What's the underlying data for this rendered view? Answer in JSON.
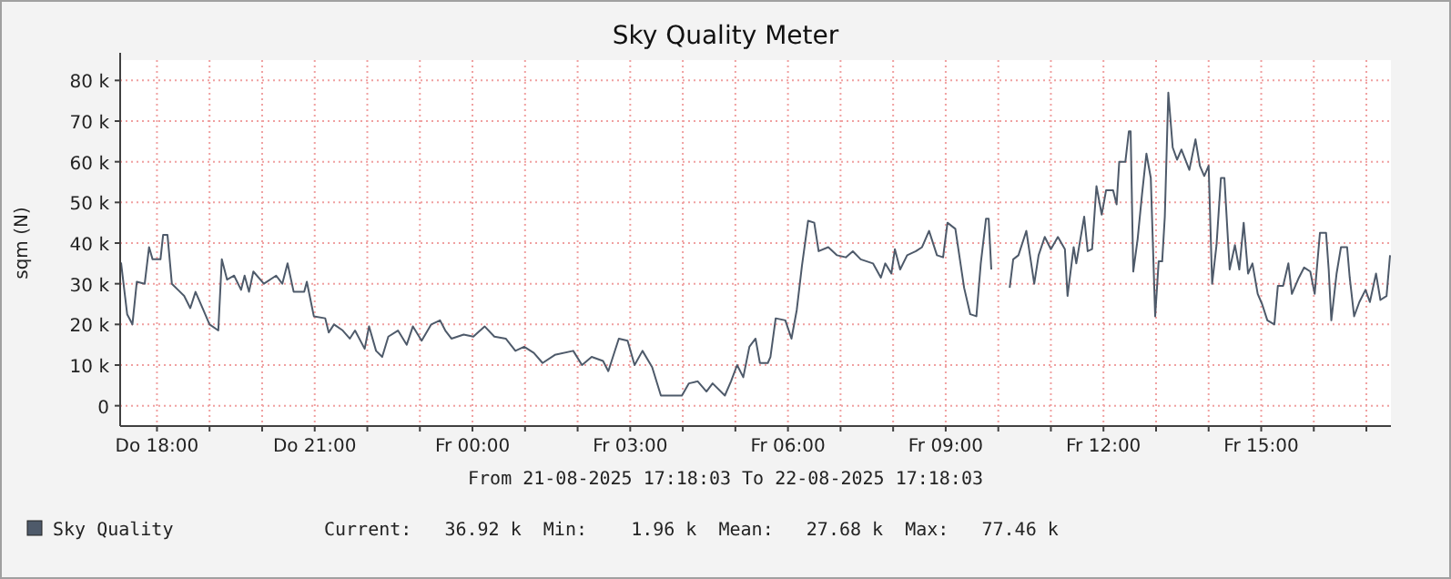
{
  "chart_data": {
    "type": "line",
    "title": "Sky Quality Meter",
    "ylabel": "sqm (N)",
    "annotations": [
      "From 21-08-2025 17:18:03 To 22-08-2025 17:18:03",
      "Current:   36.92 k  Min:    1.96 k  Mean:   27.68 k  Max:   77.46 k"
    ],
    "xlim": [
      "2025-08-21T17:18",
      "2025-08-22T17:28"
    ],
    "xticks": [
      {
        "value": "2025-08-21T18:00",
        "label": "Do 18:00"
      },
      {
        "value": "2025-08-21T19:00",
        "label": null
      },
      {
        "value": "2025-08-21T20:00",
        "label": null
      },
      {
        "value": "2025-08-21T21:00",
        "label": "Do 21:00"
      },
      {
        "value": "2025-08-21T22:00",
        "label": null
      },
      {
        "value": "2025-08-21T23:00",
        "label": null
      },
      {
        "value": "2025-08-22T00:00",
        "label": "Fr 00:00"
      },
      {
        "value": "2025-08-22T01:00",
        "label": null
      },
      {
        "value": "2025-08-22T02:00",
        "label": null
      },
      {
        "value": "2025-08-22T03:00",
        "label": "Fr 03:00"
      },
      {
        "value": "2025-08-22T04:00",
        "label": null
      },
      {
        "value": "2025-08-22T05:00",
        "label": null
      },
      {
        "value": "2025-08-22T06:00",
        "label": "Fr 06:00"
      },
      {
        "value": "2025-08-22T07:00",
        "label": null
      },
      {
        "value": "2025-08-22T08:00",
        "label": null
      },
      {
        "value": "2025-08-22T09:00",
        "label": "Fr 09:00"
      },
      {
        "value": "2025-08-22T10:00",
        "label": null
      },
      {
        "value": "2025-08-22T11:00",
        "label": null
      },
      {
        "value": "2025-08-22T12:00",
        "label": "Fr 12:00"
      },
      {
        "value": "2025-08-22T13:00",
        "label": null
      },
      {
        "value": "2025-08-22T14:00",
        "label": null
      },
      {
        "value": "2025-08-22T15:00",
        "label": "Fr 15:00"
      },
      {
        "value": "2025-08-22T16:00",
        "label": null
      },
      {
        "value": "2025-08-22T17:00",
        "label": null
      }
    ],
    "ylim": [
      -5000,
      85000
    ],
    "yticks": [
      0,
      {
        "value": 10000,
        "label": "10 k"
      },
      {
        "value": 20000,
        "label": "20 k"
      },
      {
        "value": 30000,
        "label": "30 k"
      },
      {
        "value": 40000,
        "label": "40 k"
      },
      {
        "value": 50000,
        "label": "50 k"
      },
      {
        "value": 60000,
        "label": "60 k"
      },
      {
        "value": 70000,
        "label": "70 k"
      },
      {
        "value": 80000,
        "label": "80 k"
      }
    ],
    "grid": true,
    "legend": "bottom",
    "line_style": "solid",
    "series": [
      {
        "name": "Sky Quality",
        "color": "#4e5a6a",
        "x": [
          "2025-08-21T17:19",
          "2025-08-21T17:26",
          "2025-08-21T17:32",
          "2025-08-21T17:37",
          "2025-08-21T17:46",
          "2025-08-21T17:51",
          "2025-08-21T17:55",
          "2025-08-21T18:04",
          "2025-08-21T18:07",
          "2025-08-21T18:12",
          "2025-08-21T18:17",
          "2025-08-21T18:24",
          "2025-08-21T18:31",
          "2025-08-21T18:38",
          "2025-08-21T18:44",
          "2025-08-21T18:52",
          "2025-08-21T19:00",
          "2025-08-21T19:10",
          "2025-08-21T19:14",
          "2025-08-21T19:20",
          "2025-08-21T19:28",
          "2025-08-21T19:36",
          "2025-08-21T19:40",
          "2025-08-21T19:45",
          "2025-08-21T19:50",
          "2025-08-21T20:02",
          "2025-08-21T20:16",
          "2025-08-21T20:23",
          "2025-08-21T20:29",
          "2025-08-21T20:36",
          "2025-08-21T20:48",
          "2025-08-21T20:51",
          "2025-08-21T20:59",
          "2025-08-21T21:12",
          "2025-08-21T21:16",
          "2025-08-21T21:22",
          "2025-08-21T21:32",
          "2025-08-21T21:40",
          "2025-08-21T21:46",
          "2025-08-21T21:57",
          "2025-08-21T22:02",
          "2025-08-21T22:10",
          "2025-08-21T22:17",
          "2025-08-21T22:24",
          "2025-08-21T22:35",
          "2025-08-21T22:45",
          "2025-08-21T22:52",
          "2025-08-21T23:02",
          "2025-08-21T23:13",
          "2025-08-21T23:23",
          "2025-08-21T23:29",
          "2025-08-21T23:36",
          "2025-08-21T23:50",
          "2025-08-22T00:01",
          "2025-08-22T00:14",
          "2025-08-22T00:25",
          "2025-08-22T00:38",
          "2025-08-22T00:49",
          "2025-08-22T00:59",
          "2025-08-22T01:10",
          "2025-08-22T01:20",
          "2025-08-22T01:34",
          "2025-08-22T01:55",
          "2025-08-22T02:05",
          "2025-08-22T02:16",
          "2025-08-22T02:29",
          "2025-08-22T02:35",
          "2025-08-22T02:47",
          "2025-08-22T02:57",
          "2025-08-22T03:05",
          "2025-08-22T03:14",
          "2025-08-22T03:25",
          "2025-08-22T03:35",
          "2025-08-22T03:59",
          "2025-08-22T04:07",
          "2025-08-22T04:17",
          "2025-08-22T04:27",
          "2025-08-22T04:34",
          "2025-08-22T04:48",
          "2025-08-22T04:55",
          "2025-08-22T05:02",
          "2025-08-22T05:09",
          "2025-08-22T05:16",
          "2025-08-22T05:23",
          "2025-08-22T05:28",
          "2025-08-22T05:37",
          "2025-08-22T05:40",
          "2025-08-22T05:46",
          "2025-08-22T05:57",
          "2025-08-22T06:04",
          "2025-08-22T06:10",
          "2025-08-22T06:16",
          "2025-08-22T06:23",
          "2025-08-22T06:30",
          "2025-08-22T06:35",
          "2025-08-22T06:46",
          "2025-08-22T06:56",
          "2025-08-22T07:06",
          "2025-08-22T07:14",
          "2025-08-22T07:23",
          "2025-08-22T07:37",
          "2025-08-22T07:46",
          "2025-08-22T07:51",
          "2025-08-22T07:58",
          "2025-08-22T08:02",
          "2025-08-22T08:08",
          "2025-08-22T08:16",
          "2025-08-22T08:26",
          "2025-08-22T08:33",
          "2025-08-22T08:41",
          "2025-08-22T08:50",
          "2025-08-22T08:57",
          "2025-08-22T09:02",
          "2025-08-22T09:11",
          "2025-08-22T09:21",
          "2025-08-22T09:28",
          "2025-08-22T09:35",
          "2025-08-22T09:40",
          "2025-08-22T09:46",
          "2025-08-22T09:49",
          "2025-08-22T09:52",
          "2025-08-22T09:57",
          "2025-08-22T10:13",
          "2025-08-22T10:17",
          "2025-08-22T10:23",
          "2025-08-22T10:32",
          "2025-08-22T10:41",
          "2025-08-22T10:46",
          "2025-08-22T10:53",
          "2025-08-22T11:00",
          "2025-08-22T11:08",
          "2025-08-22T11:16",
          "2025-08-22T11:19",
          "2025-08-22T11:26",
          "2025-08-22T11:29",
          "2025-08-22T11:38",
          "2025-08-22T11:42",
          "2025-08-22T11:47",
          "2025-08-22T11:52",
          "2025-08-22T11:58",
          "2025-08-22T12:03",
          "2025-08-22T12:11",
          "2025-08-22T12:15",
          "2025-08-22T12:18",
          "2025-08-22T12:25",
          "2025-08-22T12:29",
          "2025-08-22T12:31",
          "2025-08-22T12:34",
          "2025-08-22T12:39",
          "2025-08-22T12:44",
          "2025-08-22T12:49",
          "2025-08-22T12:54",
          "2025-08-22T12:59",
          "2025-08-22T13:03",
          "2025-08-22T13:07",
          "2025-08-22T13:10",
          "2025-08-22T13:14",
          "2025-08-22T13:19",
          "2025-08-22T13:24",
          "2025-08-22T13:29",
          "2025-08-22T13:38",
          "2025-08-22T13:45",
          "2025-08-22T13:50",
          "2025-08-22T13:55",
          "2025-08-22T14:00",
          "2025-08-22T14:04",
          "2025-08-22T14:09",
          "2025-08-22T14:14",
          "2025-08-22T14:18",
          "2025-08-22T14:24",
          "2025-08-22T14:30",
          "2025-08-22T14:35",
          "2025-08-22T14:40",
          "2025-08-22T14:45",
          "2025-08-22T14:50",
          "2025-08-22T14:56",
          "2025-08-22T15:01",
          "2025-08-22T15:07",
          "2025-08-22T15:15",
          "2025-08-22T15:19",
          "2025-08-22T15:25",
          "2025-08-22T15:31",
          "2025-08-22T15:35",
          "2025-08-22T15:43",
          "2025-08-22T15:49",
          "2025-08-22T15:56",
          "2025-08-22T16:01",
          "2025-08-22T16:07",
          "2025-08-22T16:14",
          "2025-08-22T16:17",
          "2025-08-22T16:20",
          "2025-08-22T16:26",
          "2025-08-22T16:31",
          "2025-08-22T16:38",
          "2025-08-22T16:41",
          "2025-08-22T16:46",
          "2025-08-22T16:52",
          "2025-08-22T16:59",
          "2025-08-22T17:04",
          "2025-08-22T17:11",
          "2025-08-22T17:16",
          "2025-08-22T17:23",
          "2025-08-22T17:27"
        ],
        "values": [
          35200,
          22500,
          20000,
          30500,
          30000,
          39000,
          36000,
          36000,
          42000,
          42000,
          30000,
          28500,
          27000,
          24000,
          28000,
          24000,
          20000,
          18500,
          36000,
          31000,
          32000,
          28500,
          32000,
          28000,
          33000,
          30000,
          32000,
          30000,
          35000,
          28000,
          28000,
          30500,
          22000,
          21500,
          18000,
          20000,
          18500,
          16500,
          18500,
          14000,
          19500,
          13500,
          12000,
          17000,
          18500,
          15000,
          19500,
          16000,
          20000,
          21000,
          18500,
          16500,
          17500,
          17000,
          19500,
          17000,
          16500,
          13500,
          14500,
          13000,
          10500,
          12500,
          13500,
          10000,
          12000,
          11000,
          8500,
          16500,
          16000,
          10000,
          13500,
          9500,
          2500,
          2500,
          5500,
          6000,
          3500,
          5500,
          2500,
          6000,
          10000,
          7000,
          14500,
          16500,
          10500,
          10500,
          12000,
          21500,
          21000,
          16500,
          23500,
          34500,
          45500,
          45000,
          38000,
          39000,
          37000,
          36500,
          38000,
          36000,
          35000,
          31500,
          35000,
          32500,
          38500,
          33500,
          37000,
          38000,
          39000,
          43000,
          37000,
          36500,
          45000,
          43500,
          29000,
          22500,
          22000,
          35000,
          46000,
          46000,
          33500,
          null,
          29000,
          36000,
          37000,
          43000,
          30000,
          37000,
          41500,
          38500,
          41500,
          38500,
          27000,
          39000,
          35000,
          46500,
          38000,
          38500,
          54000,
          47000,
          53000,
          53000,
          49500,
          60000,
          60000,
          67500,
          67500,
          33000,
          41000,
          52000,
          62000,
          56000,
          22000,
          35500,
          35500,
          46500,
          77000,
          63500,
          60500,
          63000,
          58000,
          65500,
          59000,
          56500,
          59000,
          30000,
          39500,
          56000,
          56000,
          33500,
          39500,
          33500,
          45000,
          32500,
          35000,
          27500,
          25000,
          21000,
          20000,
          29500,
          29500,
          35000,
          27500,
          31500,
          34000,
          33000,
          27500,
          42500,
          42500,
          33500,
          21000,
          32500,
          39000,
          39000,
          31500,
          22000,
          25500,
          28500,
          25500,
          32500,
          26000,
          27000,
          37000
        ]
      }
    ]
  }
}
